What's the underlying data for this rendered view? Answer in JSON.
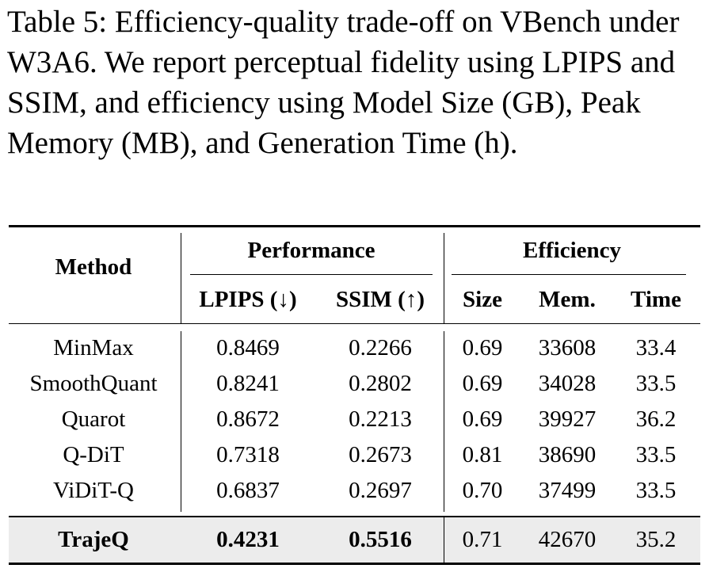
{
  "caption": "Table 5: Efficiency-quality trade-off on VBench under W3A6. We report perceptual fidelity using LPIPS and SSIM, and efficiency using Model Size (GB), Peak Memory (MB), and Generation Time (h).",
  "header": {
    "method": "Method",
    "performance": "Performance",
    "efficiency": "Efficiency",
    "lpips": "LPIPS (↓)",
    "ssim": "SSIM (↑)",
    "size": "Size",
    "mem": "Mem.",
    "time": "Time"
  },
  "rows": [
    {
      "method": "MinMax",
      "lpips": "0.8469",
      "ssim": "0.2266",
      "size": "0.69",
      "mem": "33608",
      "time": "33.4"
    },
    {
      "method": "SmoothQuant",
      "lpips": "0.8241",
      "ssim": "0.2802",
      "size": "0.69",
      "mem": "34028",
      "time": "33.5"
    },
    {
      "method": "Quarot",
      "lpips": "0.8672",
      "ssim": "0.2213",
      "size": "0.69",
      "mem": "39927",
      "time": "36.2"
    },
    {
      "method": "Q-DiT",
      "lpips": "0.7318",
      "ssim": "0.2673",
      "size": "0.81",
      "mem": "38690",
      "time": "33.5"
    },
    {
      "method": "ViDiT-Q",
      "lpips": "0.6837",
      "ssim": "0.2697",
      "size": "0.70",
      "mem": "37499",
      "time": "33.5"
    }
  ],
  "highlight_row": {
    "method": "TrajeQ",
    "lpips": "0.4231",
    "ssim": "0.5516",
    "size": "0.71",
    "mem": "42670",
    "time": "35.2"
  },
  "colors": {
    "highlight_bg": "#ececec",
    "text": "#000000"
  }
}
